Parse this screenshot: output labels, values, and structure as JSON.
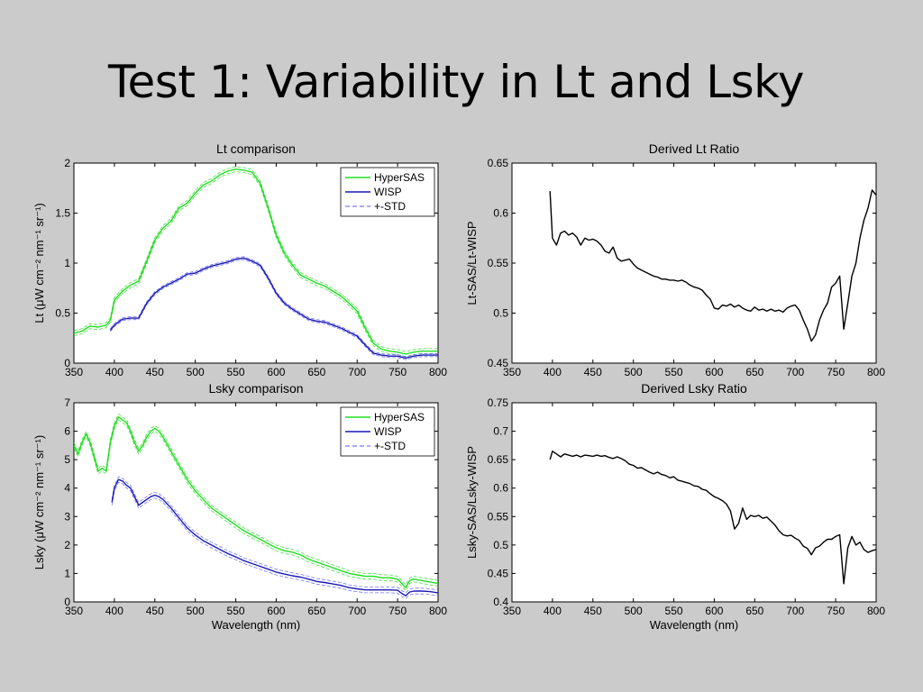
{
  "slide": {
    "title": "Test 1: Variability in Lt and Lsky"
  },
  "colors": {
    "hypersas": "#22dd22",
    "wisp": "#1a1ab4",
    "std": "#5a5aff",
    "ratio": "#000000",
    "background": "#cbcbcb"
  },
  "chart_data": [
    {
      "id": "lt",
      "type": "line",
      "title": "Lt comparison",
      "xlabel": "",
      "ylabel": "Lt (μW cm⁻² nm⁻¹ sr⁻¹)",
      "xlim": [
        350,
        800
      ],
      "ylim": [
        0,
        2
      ],
      "xticks": [
        350,
        400,
        450,
        500,
        550,
        600,
        650,
        700,
        750,
        800
      ],
      "yticks": [
        0,
        0.5,
        1,
        1.5,
        2
      ],
      "xtick_labels": [
        "350",
        "400",
        "450",
        "500",
        "550",
        "600",
        "650",
        "700",
        "750",
        "800"
      ],
      "ytick_labels": [
        "0",
        "0.5",
        "1",
        "1.5",
        "2"
      ],
      "legend": [
        "HyperSAS",
        "WISP",
        "+-STD"
      ],
      "series": [
        {
          "name": "HyperSAS",
          "style": "solid",
          "color": "hypersas",
          "std": 0.025,
          "x": [
            350,
            360,
            370,
            380,
            390,
            395,
            400,
            410,
            420,
            430,
            440,
            450,
            460,
            470,
            480,
            490,
            500,
            510,
            520,
            530,
            540,
            550,
            560,
            570,
            580,
            590,
            600,
            610,
            620,
            630,
            640,
            650,
            660,
            670,
            680,
            690,
            700,
            710,
            720,
            730,
            740,
            750,
            760,
            770,
            780,
            790,
            800
          ],
          "y": [
            0.3,
            0.32,
            0.37,
            0.36,
            0.38,
            0.43,
            0.63,
            0.72,
            0.78,
            0.82,
            1.02,
            1.23,
            1.35,
            1.42,
            1.55,
            1.6,
            1.7,
            1.78,
            1.82,
            1.88,
            1.92,
            1.94,
            1.93,
            1.91,
            1.8,
            1.55,
            1.28,
            1.1,
            0.98,
            0.88,
            0.84,
            0.8,
            0.77,
            0.72,
            0.67,
            0.6,
            0.52,
            0.35,
            0.2,
            0.14,
            0.12,
            0.11,
            0.09,
            0.11,
            0.12,
            0.12,
            0.12
          ]
        },
        {
          "name": "WISP",
          "style": "solid",
          "color": "wisp",
          "std": 0.015,
          "x": [
            395,
            400,
            410,
            420,
            430,
            440,
            450,
            460,
            470,
            480,
            490,
            500,
            510,
            520,
            530,
            540,
            550,
            560,
            570,
            580,
            590,
            600,
            610,
            620,
            630,
            640,
            650,
            660,
            670,
            680,
            690,
            700,
            710,
            720,
            730,
            740,
            750,
            760,
            770,
            780,
            790,
            800
          ],
          "y": [
            0.33,
            0.38,
            0.44,
            0.45,
            0.45,
            0.6,
            0.7,
            0.76,
            0.8,
            0.84,
            0.89,
            0.9,
            0.94,
            0.97,
            0.99,
            1.01,
            1.04,
            1.05,
            1.02,
            0.98,
            0.85,
            0.7,
            0.6,
            0.54,
            0.49,
            0.44,
            0.42,
            0.41,
            0.38,
            0.35,
            0.31,
            0.27,
            0.18,
            0.1,
            0.08,
            0.07,
            0.07,
            0.05,
            0.07,
            0.08,
            0.08,
            0.08
          ]
        }
      ]
    },
    {
      "id": "lt-ratio",
      "type": "line",
      "title": "Derived Lt Ratio",
      "xlabel": "",
      "ylabel": "Lt-SAS/Lt-WISP",
      "xlim": [
        350,
        800
      ],
      "ylim": [
        0.45,
        0.65
      ],
      "xticks": [
        350,
        400,
        450,
        500,
        550,
        600,
        650,
        700,
        750,
        800
      ],
      "yticks": [
        0.45,
        0.5,
        0.55,
        0.6,
        0.65
      ],
      "xtick_labels": [
        "350",
        "400",
        "450",
        "500",
        "550",
        "600",
        "650",
        "700",
        "750",
        "800"
      ],
      "ytick_labels": [
        "0.45",
        "0.5",
        "0.55",
        "0.6",
        "0.65"
      ],
      "series": [
        {
          "style": "solid",
          "color": "ratio",
          "x": [
            397,
            400,
            405,
            410,
            415,
            420,
            425,
            430,
            435,
            440,
            445,
            450,
            455,
            460,
            465,
            470,
            475,
            480,
            485,
            490,
            495,
            500,
            505,
            510,
            515,
            520,
            525,
            530,
            535,
            540,
            545,
            550,
            555,
            560,
            565,
            570,
            575,
            580,
            585,
            590,
            595,
            600,
            605,
            610,
            615,
            620,
            625,
            630,
            635,
            640,
            645,
            650,
            655,
            660,
            665,
            670,
            675,
            680,
            685,
            690,
            695,
            700,
            705,
            710,
            715,
            720,
            725,
            730,
            735,
            740,
            745,
            750,
            755,
            760,
            765,
            770,
            775,
            780,
            785,
            790,
            795,
            800
          ],
          "y": [
            0.622,
            0.575,
            0.568,
            0.58,
            0.582,
            0.578,
            0.58,
            0.576,
            0.568,
            0.575,
            0.573,
            0.574,
            0.572,
            0.568,
            0.562,
            0.56,
            0.566,
            0.555,
            0.552,
            0.553,
            0.554,
            0.549,
            0.545,
            0.543,
            0.541,
            0.539,
            0.537,
            0.536,
            0.534,
            0.534,
            0.533,
            0.533,
            0.532,
            0.533,
            0.531,
            0.528,
            0.526,
            0.525,
            0.523,
            0.518,
            0.514,
            0.505,
            0.504,
            0.508,
            0.507,
            0.509,
            0.506,
            0.508,
            0.505,
            0.503,
            0.502,
            0.506,
            0.503,
            0.504,
            0.502,
            0.504,
            0.502,
            0.503,
            0.501,
            0.505,
            0.507,
            0.508,
            0.503,
            0.493,
            0.484,
            0.472,
            0.478,
            0.493,
            0.503,
            0.51,
            0.526,
            0.53,
            0.537,
            0.484,
            0.51,
            0.537,
            0.55,
            0.575,
            0.593,
            0.605,
            0.623,
            0.618
          ]
        }
      ]
    },
    {
      "id": "lsky",
      "type": "line",
      "title": "Lsky comparison",
      "xlabel": "Wavelength (nm)",
      "ylabel": "Lsky (μW cm⁻² nm⁻¹ sr⁻¹)",
      "xlim": [
        350,
        800
      ],
      "ylim": [
        0,
        7
      ],
      "xticks": [
        350,
        400,
        450,
        500,
        550,
        600,
        650,
        700,
        750,
        800
      ],
      "yticks": [
        0,
        1,
        2,
        3,
        4,
        5,
        6,
        7
      ],
      "xtick_labels": [
        "350",
        "400",
        "450",
        "500",
        "550",
        "600",
        "650",
        "700",
        "750",
        "800"
      ],
      "ytick_labels": [
        "0",
        "1",
        "2",
        "3",
        "4",
        "5",
        "6",
        "7"
      ],
      "legend": [
        "HyperSAS",
        "WISP",
        "+-STD"
      ],
      "series": [
        {
          "name": "HyperSAS",
          "style": "solid",
          "color": "hypersas",
          "std": 0.1,
          "x": [
            350,
            355,
            360,
            365,
            370,
            375,
            380,
            385,
            390,
            395,
            400,
            405,
            410,
            415,
            420,
            425,
            430,
            435,
            440,
            445,
            450,
            455,
            460,
            470,
            480,
            490,
            500,
            510,
            520,
            530,
            540,
            550,
            560,
            570,
            580,
            590,
            600,
            610,
            620,
            630,
            640,
            650,
            660,
            670,
            680,
            690,
            700,
            710,
            720,
            730,
            740,
            750,
            755,
            760,
            765,
            770,
            780,
            790,
            800
          ],
          "y": [
            5.5,
            5.2,
            5.6,
            5.9,
            5.6,
            5.1,
            4.6,
            4.7,
            4.6,
            5.6,
            6.2,
            6.5,
            6.4,
            6.3,
            6.0,
            5.6,
            5.3,
            5.5,
            5.8,
            6.0,
            6.1,
            6.0,
            5.8,
            5.3,
            4.8,
            4.3,
            3.9,
            3.6,
            3.3,
            3.1,
            2.9,
            2.7,
            2.5,
            2.35,
            2.2,
            2.05,
            1.9,
            1.8,
            1.75,
            1.65,
            1.5,
            1.4,
            1.3,
            1.2,
            1.1,
            1.0,
            0.95,
            0.9,
            0.9,
            0.85,
            0.85,
            0.8,
            0.65,
            0.5,
            0.75,
            0.8,
            0.75,
            0.7,
            0.65
          ]
        },
        {
          "name": "WISP",
          "style": "solid",
          "color": "wisp",
          "std": 0.1,
          "x": [
            397,
            400,
            405,
            410,
            415,
            420,
            425,
            430,
            435,
            440,
            445,
            450,
            455,
            460,
            470,
            480,
            490,
            500,
            510,
            520,
            530,
            540,
            550,
            560,
            570,
            580,
            590,
            600,
            610,
            620,
            630,
            640,
            650,
            660,
            670,
            680,
            690,
            700,
            710,
            720,
            730,
            740,
            750,
            755,
            760,
            765,
            770,
            780,
            790,
            800
          ],
          "y": [
            3.5,
            4.0,
            4.3,
            4.25,
            4.1,
            4.0,
            3.7,
            3.4,
            3.5,
            3.6,
            3.7,
            3.75,
            3.7,
            3.6,
            3.3,
            2.95,
            2.6,
            2.35,
            2.15,
            2.0,
            1.85,
            1.7,
            1.58,
            1.45,
            1.35,
            1.25,
            1.15,
            1.05,
            0.98,
            0.92,
            0.87,
            0.8,
            0.72,
            0.68,
            0.63,
            0.58,
            0.5,
            0.46,
            0.42,
            0.42,
            0.42,
            0.42,
            0.41,
            0.3,
            0.22,
            0.35,
            0.38,
            0.38,
            0.36,
            0.32
          ]
        }
      ]
    },
    {
      "id": "lsky-ratio",
      "type": "line",
      "title": "Derived Lsky Ratio",
      "xlabel": "Wavelength (nm)",
      "ylabel": "Lsky-SAS/Lsky-WISP",
      "xlim": [
        350,
        800
      ],
      "ylim": [
        0.4,
        0.75
      ],
      "xticks": [
        350,
        400,
        450,
        500,
        550,
        600,
        650,
        700,
        750,
        800
      ],
      "yticks": [
        0.4,
        0.45,
        0.5,
        0.55,
        0.6,
        0.65,
        0.7,
        0.75
      ],
      "xtick_labels": [
        "350",
        "400",
        "450",
        "500",
        "550",
        "600",
        "650",
        "700",
        "750",
        "800"
      ],
      "ytick_labels": [
        "0.4",
        "0.45",
        "0.5",
        "0.55",
        "0.6",
        "0.65",
        "0.7",
        "0.75"
      ],
      "series": [
        {
          "style": "solid",
          "color": "ratio",
          "x": [
            397,
            400,
            405,
            410,
            415,
            420,
            425,
            430,
            435,
            440,
            445,
            450,
            455,
            460,
            465,
            470,
            475,
            480,
            485,
            490,
            495,
            500,
            505,
            510,
            515,
            520,
            525,
            530,
            535,
            540,
            545,
            550,
            555,
            560,
            565,
            570,
            575,
            580,
            585,
            590,
            595,
            600,
            605,
            610,
            615,
            620,
            625,
            630,
            635,
            640,
            645,
            650,
            655,
            660,
            665,
            670,
            675,
            680,
            685,
            690,
            695,
            700,
            705,
            710,
            715,
            720,
            725,
            730,
            735,
            740,
            745,
            750,
            755,
            760,
            765,
            770,
            775,
            780,
            785,
            790,
            795,
            800
          ],
          "y": [
            0.65,
            0.665,
            0.66,
            0.655,
            0.66,
            0.658,
            0.656,
            0.658,
            0.655,
            0.658,
            0.657,
            0.656,
            0.658,
            0.656,
            0.657,
            0.654,
            0.652,
            0.655,
            0.652,
            0.648,
            0.642,
            0.64,
            0.635,
            0.636,
            0.632,
            0.628,
            0.625,
            0.628,
            0.624,
            0.622,
            0.618,
            0.62,
            0.614,
            0.612,
            0.61,
            0.608,
            0.604,
            0.603,
            0.598,
            0.596,
            0.59,
            0.585,
            0.582,
            0.578,
            0.572,
            0.56,
            0.528,
            0.538,
            0.565,
            0.545,
            0.552,
            0.55,
            0.552,
            0.547,
            0.549,
            0.542,
            0.535,
            0.525,
            0.518,
            0.516,
            0.517,
            0.512,
            0.508,
            0.498,
            0.494,
            0.483,
            0.495,
            0.498,
            0.505,
            0.51,
            0.51,
            0.515,
            0.518,
            0.432,
            0.495,
            0.515,
            0.5,
            0.505,
            0.492,
            0.487,
            0.49,
            0.492
          ]
        }
      ]
    }
  ]
}
